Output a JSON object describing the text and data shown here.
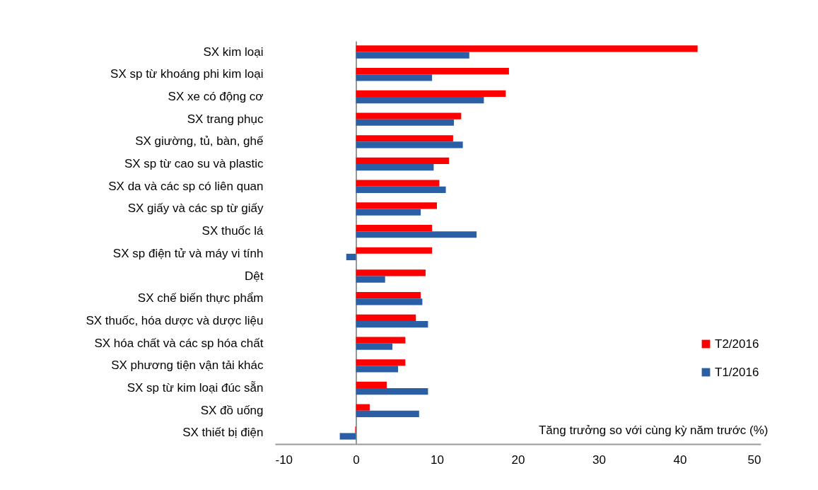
{
  "chart_data": {
    "type": "bar",
    "orientation": "horizontal",
    "xlabel": "Tăng trưởng so với cùng kỳ năm trước (%)",
    "categories": [
      "SX kim loại",
      "SX sp từ khoáng phi kim loại",
      "SX xe có động cơ",
      "SX trang phục",
      "SX giường, tủ, bàn, ghế",
      "SX sp từ cao su và plastic",
      "SX da và các sp có liên quan",
      "SX giấy và các sp từ giấy",
      "SX thuốc lá",
      "SX sp điện tử và máy vi tính",
      "Dệt",
      "SX chế biến thực phẩm",
      "SX thuốc, hóa dược và dược liệu",
      "SX hóa chất và các sp hóa chất",
      "SX phương tiện vận tải khác",
      "SX sp từ kim loại đúc sẵn",
      "SX đồ uống",
      "SX thiết bị điện"
    ],
    "series": [
      {
        "name": "T2/2016",
        "color": "#ff0000",
        "values": [
          42.2,
          18.9,
          18.5,
          13.0,
          12.0,
          11.5,
          10.3,
          10.0,
          9.4,
          9.4,
          8.6,
          8.0,
          7.4,
          6.1,
          6.1,
          3.8,
          1.7,
          -0.1
        ]
      },
      {
        "name": "T1/2016",
        "color": "#2a5fa5",
        "values": [
          14.0,
          9.4,
          15.8,
          12.1,
          13.2,
          9.6,
          11.1,
          8.0,
          14.9,
          -1.2,
          3.6,
          8.2,
          8.9,
          4.5,
          5.2,
          8.9,
          7.8,
          -2.0
        ]
      }
    ],
    "xlim": [
      -10,
      50
    ],
    "xticks": [
      -10,
      0,
      10,
      20,
      30,
      40,
      50
    ],
    "legend": "bottom right"
  }
}
